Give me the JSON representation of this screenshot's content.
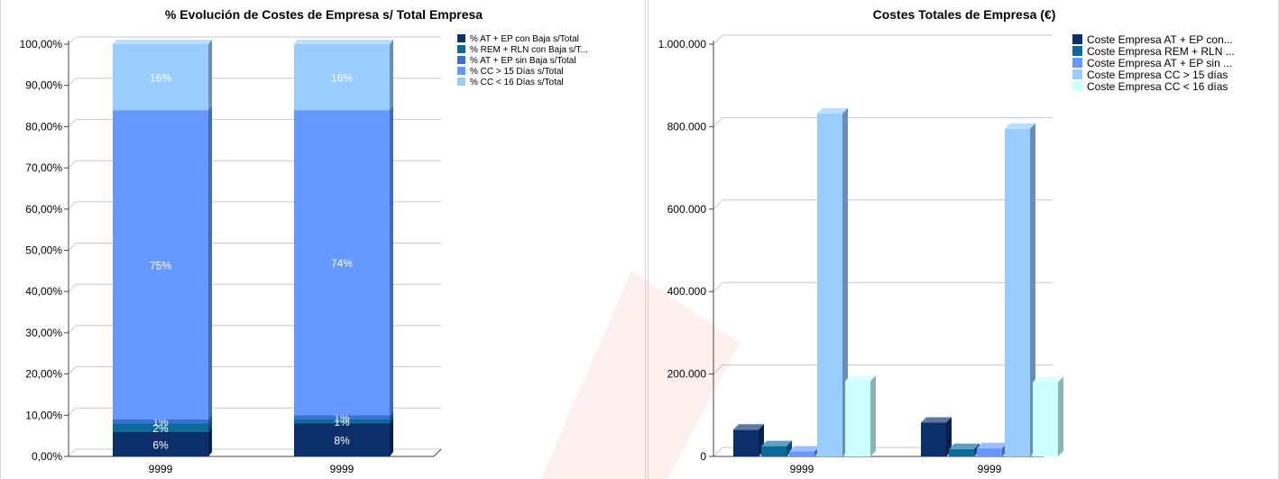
{
  "chart_data": [
    {
      "type": "bar",
      "stacked": true,
      "title": "% Evolución de Costes de Empresa s/ Total Empresa",
      "categories": [
        "9999",
        "9999"
      ],
      "ylim": [
        0,
        100
      ],
      "yticks": [
        "0,00%",
        "10,00%",
        "20,00%",
        "30,00%",
        "40,00%",
        "50,00%",
        "60,00%",
        "70,00%",
        "80,00%",
        "90,00%",
        "100,00%"
      ],
      "grid": true,
      "legend_position": "top-right",
      "series": [
        {
          "name": "% AT + EP con Baja s/Total",
          "values": [
            6,
            8
          ],
          "labels": [
            "6%",
            "8%"
          ],
          "color": "#0a2f6b"
        },
        {
          "name": "% REM + RLN con Baja s/T...",
          "values": [
            2,
            1
          ],
          "labels": [
            "2%",
            "1%"
          ],
          "color": "#0a6a9a"
        },
        {
          "name": "% AT + EP sin Baja s/Total",
          "values": [
            1,
            1
          ],
          "labels": [
            "1%",
            "1%"
          ],
          "color": "#3a6fd8"
        },
        {
          "name": "% CC > 15 Días s/Total",
          "values": [
            75,
            74
          ],
          "labels": [
            "75%",
            "74%"
          ],
          "color": "#6699ff"
        },
        {
          "name": "% CC < 16 Días s/Total",
          "values": [
            16,
            16
          ],
          "labels": [
            "16%",
            "16%"
          ],
          "color": "#99ccff"
        }
      ]
    },
    {
      "type": "bar",
      "stacked": false,
      "title": "Costes Totales de Empresa (€)",
      "categories": [
        "9999",
        "9999"
      ],
      "ylim": [
        0,
        1000000
      ],
      "yticks": [
        "0",
        "200.000",
        "400.000",
        "600.000",
        "800.000",
        "1.000.000"
      ],
      "grid": true,
      "legend_position": "top-right",
      "series": [
        {
          "name": "Coste Empresa AT + EP con...",
          "values": [
            65000,
            82000
          ],
          "color": "#0a2f6b"
        },
        {
          "name": "Coste Empresa REM + RLN ...",
          "values": [
            25000,
            18000
          ],
          "color": "#0a6a9a"
        },
        {
          "name": "Coste Empresa AT + EP sin ...",
          "values": [
            12000,
            20000
          ],
          "color": "#6699ff"
        },
        {
          "name": "Coste Empresa CC > 15 días",
          "values": [
            832000,
            795000
          ],
          "color": "#99ccff"
        },
        {
          "name": "Coste Empresa CC < 16 días",
          "values": [
            183000,
            180000
          ],
          "color": "#ccffff"
        }
      ]
    }
  ]
}
